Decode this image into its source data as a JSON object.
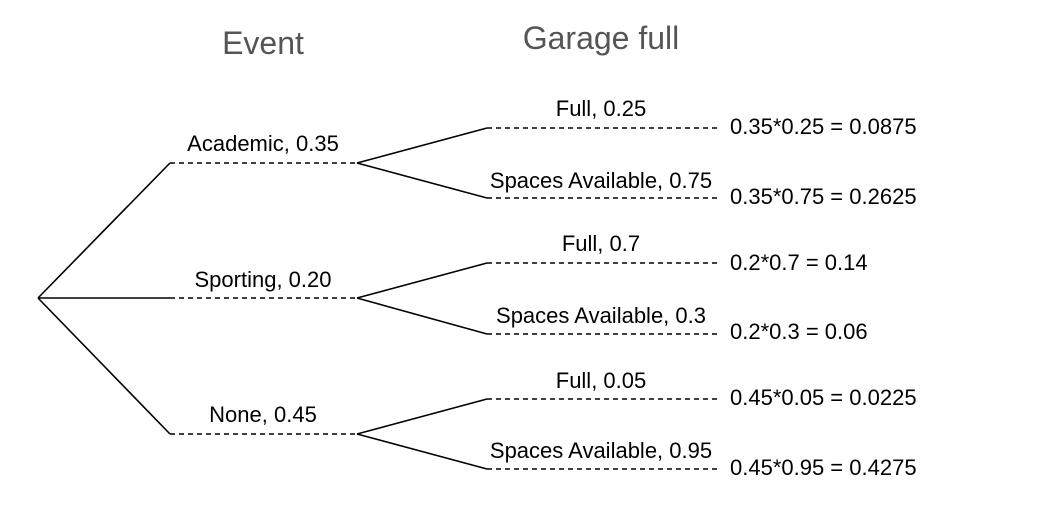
{
  "headers": {
    "event": "Event",
    "garage": "Garage full"
  },
  "events": [
    {
      "label": "Academic,  0.35",
      "outcomes": [
        {
          "label": "Full,  0.25",
          "result": "0.35*0.25 = 0.0875"
        },
        {
          "label": "Spaces Available,  0.75",
          "result": "0.35*0.75 = 0.2625"
        }
      ]
    },
    {
      "label": "Sporting,  0.20",
      "outcomes": [
        {
          "label": "Full,  0.7",
          "result": "0.2*0.7 = 0.14"
        },
        {
          "label": "Spaces Available,  0.3",
          "result": "0.2*0.3 = 0.06"
        }
      ]
    },
    {
      "label": "None,  0.45",
      "outcomes": [
        {
          "label": "Full,  0.05",
          "result": "0.45*0.05 = 0.0225"
        },
        {
          "label": "Spaces Available,  0.95",
          "result": "0.45*0.95 = 0.4275"
        }
      ]
    }
  ]
}
